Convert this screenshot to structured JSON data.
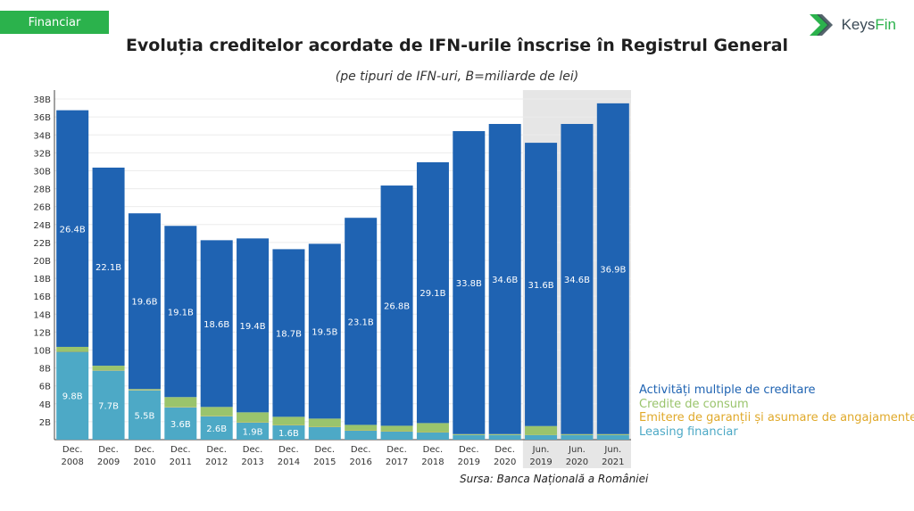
{
  "header": {
    "category_tag": "Financiar",
    "brand_name": "KeysFin",
    "brand_prefix": "Keys",
    "brand_suffix": "Fin"
  },
  "chart_data": {
    "type": "bar",
    "stacked": true,
    "title": "Evoluția creditelor acordate de IFN-urile înscrise în Registrul General",
    "subtitle": "(pe tipuri de IFN-uri, B=miliarde de lei)",
    "source": "Sursa: Banca Națională a României",
    "ylim": [
      0,
      39
    ],
    "yticks": [
      "2B",
      "4B",
      "6B",
      "8B",
      "10B",
      "12B",
      "14B",
      "16B",
      "18B",
      "20B",
      "22B",
      "24B",
      "26B",
      "28B",
      "30B",
      "32B",
      "34B",
      "36B",
      "38B"
    ],
    "categories": [
      [
        "Dec.",
        "2008"
      ],
      [
        "Dec.",
        "2009"
      ],
      [
        "Dec.",
        "2010"
      ],
      [
        "Dec.",
        "2011"
      ],
      [
        "Dec.",
        "2012"
      ],
      [
        "Dec.",
        "2013"
      ],
      [
        "Dec.",
        "2014"
      ],
      [
        "Dec.",
        "2015"
      ],
      [
        "Dec.",
        "2016"
      ],
      [
        "Dec.",
        "2017"
      ],
      [
        "Dec.",
        "2018"
      ],
      [
        "Dec.",
        "2019"
      ],
      [
        "Dec.",
        "2020"
      ],
      [
        "Jun.",
        "2019"
      ],
      [
        "Jun.",
        "2020"
      ],
      [
        "Jun.",
        "2021"
      ]
    ],
    "highlighted_categories": [
      13,
      14,
      15
    ],
    "series": [
      {
        "name": "Leasing financiar",
        "color": "#4da9c6",
        "values": [
          9.8,
          7.7,
          5.5,
          3.6,
          2.6,
          1.9,
          1.6,
          1.4,
          1.0,
          0.9,
          0.8,
          0.5,
          0.5,
          0.5,
          0.5,
          0.5
        ],
        "labels": [
          "9.8B",
          "7.7B",
          "5.5B",
          "3.6B",
          "2.6B",
          "1.9B",
          "1.6B",
          "",
          "",
          "",
          "",
          "",
          "",
          "",
          "",
          ""
        ]
      },
      {
        "name": "Emitere de garanții și asumare de angajamente",
        "color": "#c9b34a",
        "values": [
          0.05,
          0.05,
          0.05,
          0.05,
          0.05,
          0.05,
          0.05,
          0.05,
          0.05,
          0.05,
          0.05,
          0.02,
          0.02,
          0.02,
          0.02,
          0.02
        ],
        "labels": [
          "",
          "",
          "",
          "",
          "",
          "",
          "",
          "",
          "",
          "",
          "",
          "",
          "",
          "",
          "",
          ""
        ]
      },
      {
        "name": "Credite de consum",
        "color": "#9ac46c",
        "values": [
          0.5,
          0.5,
          0.1,
          1.1,
          1.0,
          1.1,
          0.9,
          0.9,
          0.6,
          0.6,
          1.0,
          0.1,
          0.1,
          1.0,
          0.1,
          0.1
        ],
        "labels": [
          "",
          "",
          "",
          "",
          "",
          "",
          "",
          "",
          "",
          "",
          "",
          "",
          "",
          "",
          "",
          ""
        ]
      },
      {
        "name": "Activități multiple de creditare",
        "color": "#1f63b2",
        "values": [
          26.4,
          22.1,
          19.6,
          19.1,
          18.6,
          19.4,
          18.7,
          19.5,
          23.1,
          26.8,
          29.1,
          33.8,
          34.6,
          31.6,
          34.6,
          36.9
        ],
        "labels": [
          "26.4B",
          "22.1B",
          "19.6B",
          "19.1B",
          "18.6B",
          "19.4B",
          "18.7B",
          "19.5B",
          "23.1B",
          "26.8B",
          "29.1B",
          "33.8B",
          "34.6B",
          "31.6B",
          "34.6B",
          "36.9B"
        ]
      }
    ],
    "legend_order": [
      {
        "name": "Activități multiple de creditare",
        "color": "#1f63b2"
      },
      {
        "name": "Credite de consum",
        "color": "#9ac46c"
      },
      {
        "name": "Emitere de garanții și asumare de angajamente",
        "color": "#e0a92a"
      },
      {
        "name": "Leasing financiar",
        "color": "#4da9c6"
      }
    ],
    "legend_position": "bottom-right"
  }
}
